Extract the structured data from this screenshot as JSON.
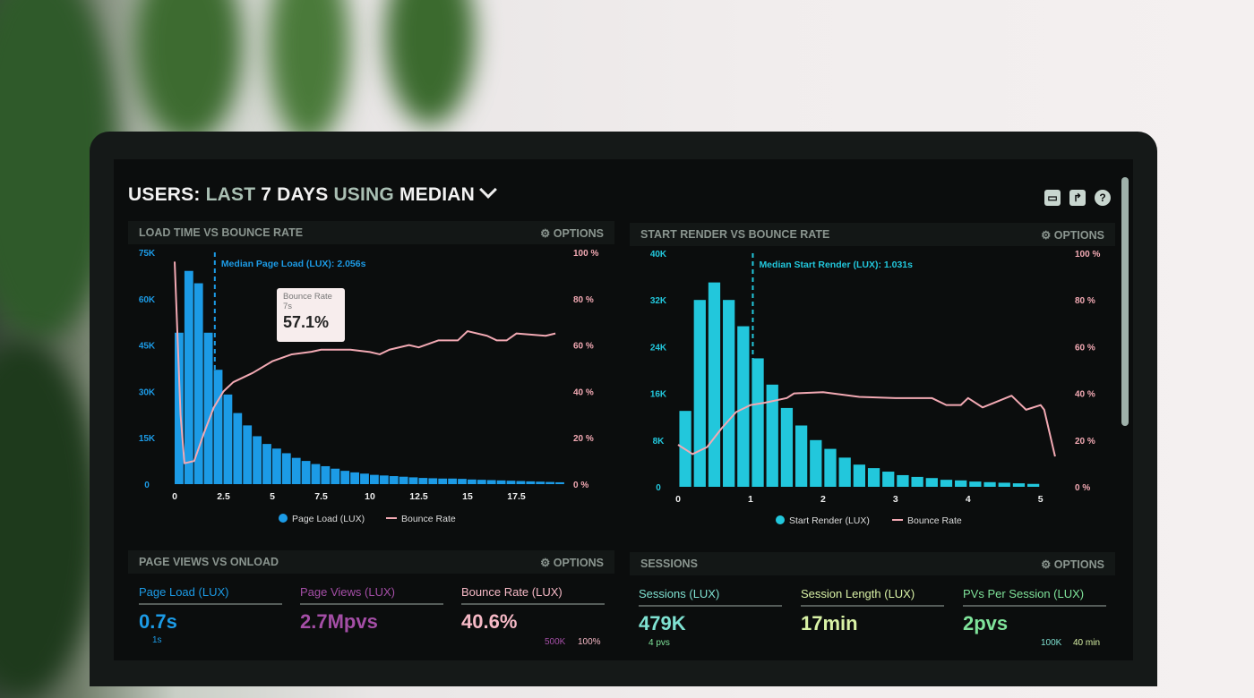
{
  "header": {
    "title_parts": [
      {
        "text": "USERS: ",
        "dim": false
      },
      {
        "text": "LAST ",
        "dim": true
      },
      {
        "text": "7 DAYS ",
        "dim": false
      },
      {
        "text": "USING ",
        "dim": true
      },
      {
        "text": "MEDIAN",
        "dim": false
      }
    ],
    "icons": [
      "monitor-icon",
      "share-icon",
      "help-icon"
    ]
  },
  "options_label": "⚙ OPTIONS",
  "chart_data": [
    {
      "type": "bar",
      "title": "LOAD TIME VS BOUNCE RATE",
      "color": "#1c9be6",
      "line_color": "#f2a9b3",
      "x_ticks": [
        "0",
        "2.5",
        "5",
        "7.5",
        "10",
        "12.5",
        "15",
        "17.5"
      ],
      "xlim": [
        0,
        20
      ],
      "y_ticks": [
        "0",
        "15K",
        "30K",
        "45K",
        "60K",
        "75K"
      ],
      "ylim": [
        0,
        75000
      ],
      "y2_ticks": [
        "0 %",
        "20 %",
        "40 %",
        "60 %",
        "80 %",
        "100 %"
      ],
      "y2lim": [
        0,
        100
      ],
      "median": {
        "x": 2.056,
        "label": "Median Page Load (LUX): 2.056s"
      },
      "tooltip": {
        "series": "Bounce Rate",
        "x": "7s",
        "value": "57.1%"
      },
      "series": [
        {
          "name": "Page Load (LUX)",
          "type": "bar",
          "x": [
            0,
            0.5,
            1,
            1.5,
            2,
            2.5,
            3,
            3.5,
            4,
            4.5,
            5,
            5.5,
            6,
            6.5,
            7,
            7.5,
            8,
            8.5,
            9,
            9.5,
            10,
            10.5,
            11,
            11.5,
            12,
            12.5,
            13,
            13.5,
            14,
            14.5,
            15,
            15.5,
            16,
            16.5,
            17,
            17.5,
            18,
            18.5,
            19,
            19.5
          ],
          "values": [
            49000,
            69000,
            65000,
            49000,
            37000,
            29000,
            23000,
            19000,
            15500,
            13000,
            11500,
            10000,
            8500,
            7500,
            6500,
            5800,
            5000,
            4300,
            3800,
            3400,
            3000,
            2800,
            2600,
            2400,
            2200,
            2000,
            1900,
            1800,
            1800,
            1700,
            1500,
            1400,
            1300,
            1200,
            1100,
            1000,
            900,
            800,
            700,
            600
          ]
        },
        {
          "name": "Bounce Rate",
          "type": "line",
          "x": [
            0,
            0.3,
            0.5,
            1,
            1.5,
            2,
            2.5,
            3,
            4,
            5,
            6,
            7,
            7.5,
            9,
            10,
            10.5,
            11,
            12,
            12.5,
            13.5,
            14.5,
            15,
            16,
            16.5,
            17,
            17.5,
            19,
            19.5
          ],
          "values": [
            96,
            30,
            9,
            10,
            22,
            33,
            40,
            44,
            48,
            53,
            56,
            57.1,
            58,
            58,
            57,
            56,
            58,
            60,
            59,
            62,
            62,
            66,
            64,
            62,
            62,
            65,
            64,
            65
          ]
        }
      ]
    },
    {
      "type": "bar",
      "title": "START RENDER VS BOUNCE RATE",
      "color": "#22c7dc",
      "line_color": "#f2a9b3",
      "x_ticks": [
        "0",
        "1",
        "2",
        "3",
        "4",
        "5"
      ],
      "xlim": [
        0,
        5.3
      ],
      "y_ticks": [
        "0",
        "8K",
        "16K",
        "24K",
        "32K",
        "40K"
      ],
      "ylim": [
        0,
        40000
      ],
      "y2_ticks": [
        "0 %",
        "20 %",
        "40 %",
        "60 %",
        "80 %",
        "100 %"
      ],
      "y2lim": [
        0,
        100
      ],
      "median": {
        "x": 1.031,
        "label": "Median Start Render (LUX): 1.031s"
      },
      "series": [
        {
          "name": "Start Render (LUX)",
          "type": "bar",
          "x": [
            0.1,
            0.3,
            0.5,
            0.7,
            0.9,
            1.1,
            1.3,
            1.5,
            1.7,
            1.9,
            2.1,
            2.3,
            2.5,
            2.7,
            2.9,
            3.1,
            3.3,
            3.5,
            3.7,
            3.9,
            4.1,
            4.3,
            4.5,
            4.7,
            4.9
          ],
          "values": [
            13000,
            32000,
            35000,
            32000,
            27500,
            22000,
            17500,
            13500,
            10500,
            8000,
            6500,
            5000,
            3800,
            3200,
            2600,
            2000,
            1700,
            1500,
            1200,
            1100,
            900,
            800,
            700,
            600,
            500
          ]
        },
        {
          "name": "Bounce Rate",
          "type": "line",
          "x": [
            0,
            0.2,
            0.4,
            0.6,
            0.8,
            1,
            1.2,
            1.5,
            1.6,
            2,
            2.5,
            3,
            3.5,
            3.7,
            3.9,
            4,
            4.2,
            4.6,
            4.8,
            5,
            5.05,
            5.2
          ],
          "values": [
            18,
            14,
            17,
            25,
            32,
            35,
            36,
            38,
            40,
            40.5,
            38.5,
            38,
            38,
            35,
            35,
            38,
            34,
            39,
            33,
            35,
            33,
            13
          ]
        }
      ]
    }
  ],
  "page_views": {
    "title": "PAGE VIEWS VS ONLOAD",
    "metrics": [
      {
        "label": "Page Load (LUX)",
        "value": "0.7s",
        "color": "#1c9be6"
      },
      {
        "label": "Page Views (LUX)",
        "value": "2.7Mpvs",
        "color": "#a44ea6"
      },
      {
        "label": "Bounce Rate (LUX)",
        "value": "40.6%",
        "color": "#f6b9c6"
      }
    ],
    "sub_left": "1s",
    "sub_right_a": "500K",
    "sub_right_b": "100%"
  },
  "sessions": {
    "title": "SESSIONS",
    "metrics": [
      {
        "label": "Sessions (LUX)",
        "value": "479K",
        "color": "#7fe2d2"
      },
      {
        "label": "Session Length (LUX)",
        "value": "17min",
        "color": "#d9f2a6"
      },
      {
        "label": "PVs Per Session (LUX)",
        "value": "2pvs",
        "color": "#7fe39a"
      }
    ],
    "sub_left": "4 pvs",
    "sub_right_a": "100K",
    "sub_right_b": "40 min"
  }
}
